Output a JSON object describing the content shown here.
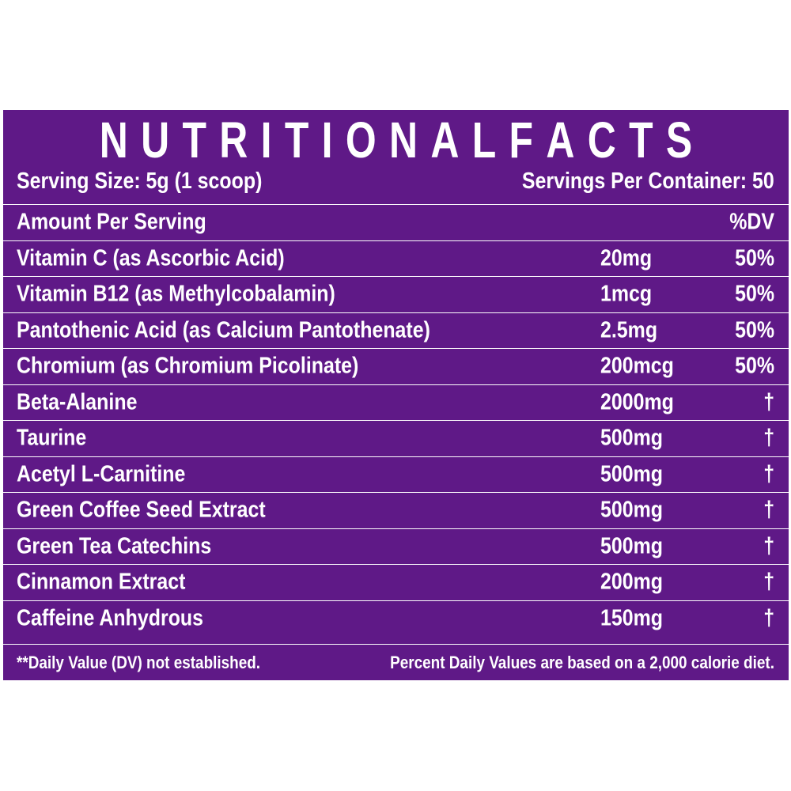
{
  "title": {
    "word1": [
      "N",
      "U",
      "T",
      "R",
      "I",
      "T",
      "I",
      "O",
      "N",
      "A",
      "L"
    ],
    "word2": [
      "F",
      "A",
      "C",
      "T",
      "S"
    ]
  },
  "serving": {
    "size": "Serving Size: 5g (1 scoop)",
    "per_container": "Servings Per Container: 50"
  },
  "header": {
    "amount_label": "Amount Per Serving",
    "dv_label": "%DV"
  },
  "rows": [
    {
      "name": "Vitamin C (as Ascorbic Acid)",
      "amount": "20mg",
      "dv": "50%"
    },
    {
      "name": "Vitamin B12 (as Methylcobalamin)",
      "amount": "1mcg",
      "dv": "50%"
    },
    {
      "name": "Pantothenic Acid (as Calcium Pantothenate)",
      "amount": "2.5mg",
      "dv": "50%"
    },
    {
      "name": "Chromium (as Chromium Picolinate)",
      "amount": "200mcg",
      "dv": "50%"
    },
    {
      "name": "Beta-Alanine",
      "amount": "2000mg",
      "dv": "†"
    },
    {
      "name": "Taurine",
      "amount": "500mg",
      "dv": "†"
    },
    {
      "name": "Acetyl L-Carnitine",
      "amount": "500mg",
      "dv": "†"
    },
    {
      "name": "Green Coffee Seed Extract",
      "amount": "500mg",
      "dv": "†"
    },
    {
      "name": "Green Tea Catechins",
      "amount": "500mg",
      "dv": "†"
    },
    {
      "name": "Cinnamon Extract",
      "amount": "200mg",
      "dv": "†"
    },
    {
      "name": "Caffeine Anhydrous",
      "amount": "150mg",
      "dv": "†"
    }
  ],
  "footer": {
    "left": "**Daily Value (DV) not established.",
    "right": "Percent Daily Values are based on a 2,000 calorie diet."
  },
  "colors": {
    "panel_background": "#5f1987",
    "text": "#ffffff"
  }
}
